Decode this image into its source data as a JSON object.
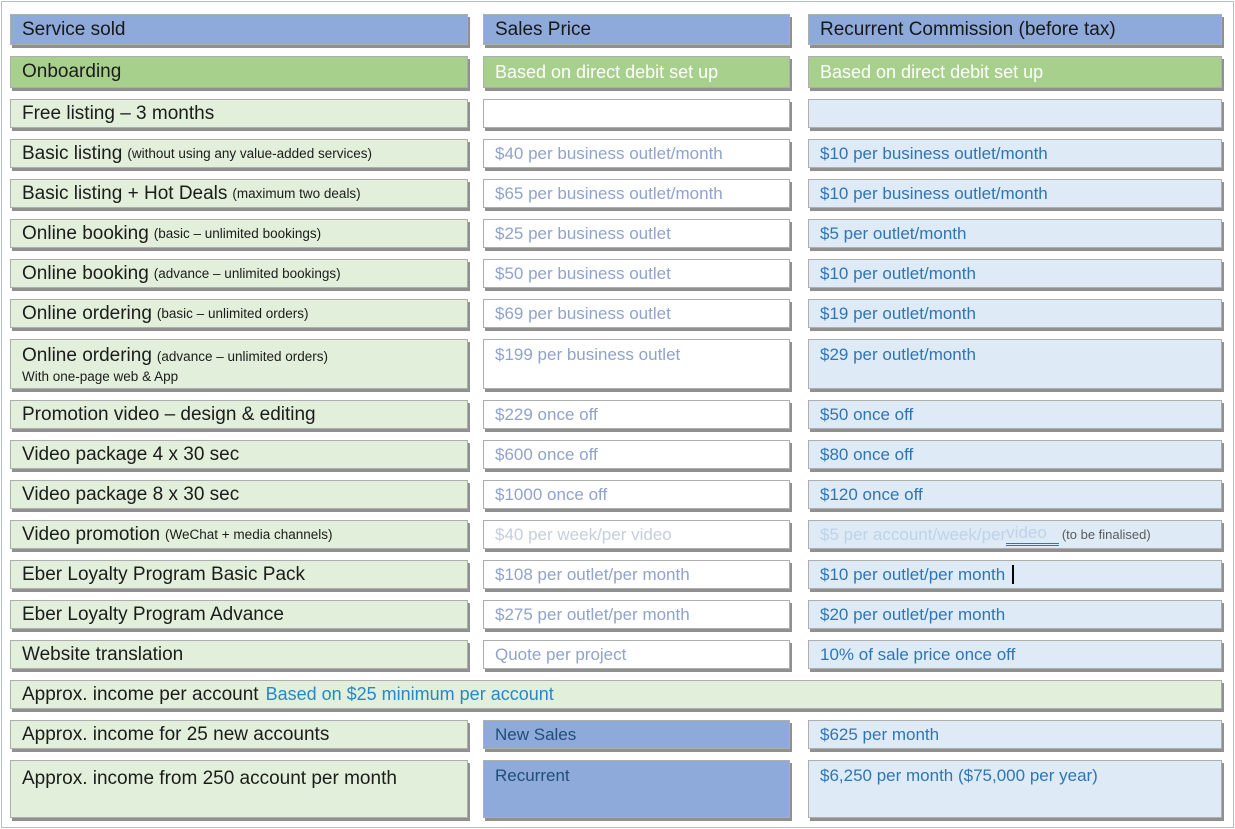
{
  "colors": {
    "header_bg": "#8EAADB",
    "onboarding_bg": "#A8D08D",
    "service_bg": "#E2EFDA",
    "commission_bg": "#DEEBF7",
    "price_text": "#8FA3CC",
    "commission_text": "#2E75B6",
    "accent_blue": "#2488CB",
    "faded_text": "#C7CEDC",
    "note_gray": "#5a5a5a",
    "category_text": "#1F4E79"
  },
  "header": {
    "service": "Service sold",
    "price": "Sales Price",
    "commission": "Recurrent Commission (before tax)"
  },
  "onboarding": {
    "service": "Onboarding",
    "price": "Based on direct debit set up",
    "commission": "Based on direct debit set up"
  },
  "services": [
    {
      "name": "Free listing – 3 months",
      "note": "",
      "price": "",
      "commission": ""
    },
    {
      "name": "Basic listing",
      "note": "(without using any value-added services)",
      "price": "$40 per business outlet/month",
      "commission": "$10 per business outlet/month"
    },
    {
      "name": "Basic listing + Hot Deals",
      "note": "(maximum two deals)",
      "price": "$65 per business outlet/month",
      "commission": "$10 per business outlet/month"
    },
    {
      "name": "Online booking",
      "note": "(basic – unlimited bookings)",
      "price": "$25 per business outlet",
      "commission": "$5 per outlet/month"
    },
    {
      "name": "Online booking",
      "note": "(advance – unlimited bookings)",
      "price": "$50 per business outlet",
      "commission": "$10 per outlet/month"
    },
    {
      "name": "Online ordering",
      "note": "(basic – unlimited orders)",
      "price": "$69 per business outlet",
      "commission": "$19 per outlet/month"
    },
    {
      "name": "Online ordering",
      "note": "(advance – unlimited orders)",
      "subline": "With one-page web & App",
      "price": "$199 per business outlet",
      "commission": "$29 per outlet/month"
    },
    {
      "name": "Promotion video – design & editing",
      "note": "",
      "price": "$229 once off",
      "commission": "$50 once off"
    },
    {
      "name": "Video package 4 x 30 sec",
      "note": "",
      "price": "$600 once off",
      "commission": "$80 once off"
    },
    {
      "name": "Video package 8 x 30 sec",
      "note": "",
      "price": "$1000 once off",
      "commission": "$120 once off"
    },
    {
      "name": "Video promotion",
      "note": "(WeChat + media channels)",
      "price": "$40 per week/per video",
      "commission_prefix": "$5 per account/week/per ",
      "commission_underlined": "video",
      "commission_note": "(to be finalised)"
    },
    {
      "name": "Eber Loyalty Program Basic Pack",
      "note": "",
      "price": "$108 per outlet/per month",
      "commission": "$10 per outlet/per month"
    },
    {
      "name": "Eber Loyalty Program Advance",
      "note": "",
      "price": "$275 per outlet/per month",
      "commission": "$20 per outlet/per month"
    },
    {
      "name": "Website translation",
      "note": "",
      "price": "Quote per project",
      "commission": "10% of sale price once off"
    }
  ],
  "summary": {
    "income_per_account": {
      "label": "Approx. income per account",
      "note": "Based on $25 minimum per account"
    },
    "rows": [
      {
        "label": "Approx. income for 25 new accounts",
        "category": "New Sales",
        "value": "$625 per month"
      },
      {
        "label": "Approx. income from 250 account per month",
        "category": "Recurrent",
        "value": "$6,250 per month ($75,000 per year)"
      }
    ]
  }
}
